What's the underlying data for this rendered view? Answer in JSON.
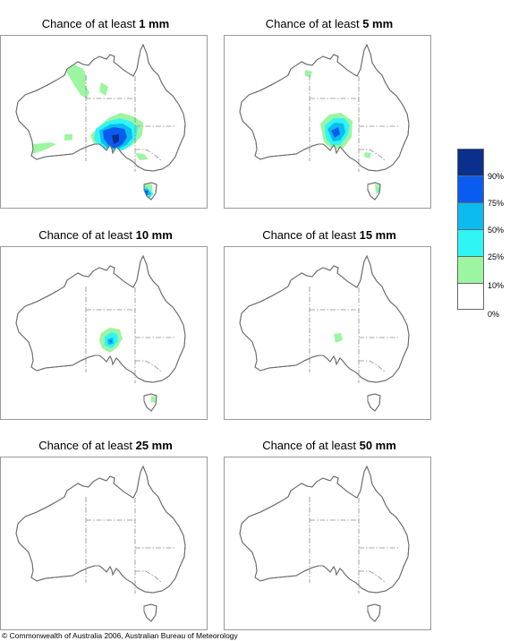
{
  "panels": [
    {
      "prefix": "Chance of at least",
      "amount": "1 mm"
    },
    {
      "prefix": "Chance of at least",
      "amount": "5 mm"
    },
    {
      "prefix": "Chance of at least",
      "amount": "10 mm"
    },
    {
      "prefix": "Chance of at least",
      "amount": "15 mm"
    },
    {
      "prefix": "Chance of at least",
      "amount": "25 mm"
    },
    {
      "prefix": "Chance of at least",
      "amount": "50 mm"
    }
  ],
  "legend": {
    "labels": [
      "90%",
      "75%",
      "50%",
      "25%",
      "10%",
      "0%"
    ],
    "colors": [
      "#0a2f8c",
      "#0a5cf0",
      "#0abcf0",
      "#2ff5f5",
      "#9cf5a0",
      "#ffffff"
    ]
  },
  "colors": {
    "coastline": "#6b6b6b",
    "state_border": "#8a8a8a",
    "panel_border": "#999999"
  },
  "copyright": "© Commonwealth of Australia 2006, Australian Bureau of Meteorology"
}
